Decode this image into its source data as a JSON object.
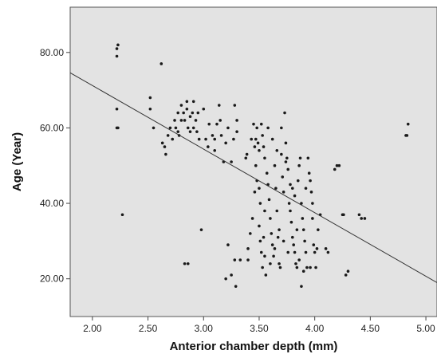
{
  "chart_data": {
    "type": "scatter",
    "title": "",
    "xlabel": "Anterior chamber depth (mm)",
    "ylabel": "Age (Year)",
    "xlim": [
      1.8,
      5.1
    ],
    "ylim": [
      10,
      92
    ],
    "x_ticks": [
      "2.00",
      "2.50",
      "3.00",
      "3.50",
      "4.00",
      "4.50",
      "5.00"
    ],
    "y_ticks": [
      "20.00",
      "40.00",
      "60.00",
      "80.00"
    ],
    "grid": false,
    "background_color": "#e3e3e3",
    "point_color": "#1a1a1a",
    "fit_line": {
      "x": [
        1.8,
        5.1
      ],
      "y": [
        74.6,
        19.0
      ]
    },
    "points": [
      [
        2.22,
        81
      ],
      [
        2.23,
        82
      ],
      [
        2.22,
        79
      ],
      [
        2.22,
        65
      ],
      [
        2.22,
        60
      ],
      [
        2.23,
        60
      ],
      [
        2.27,
        37
      ],
      [
        2.52,
        68
      ],
      [
        2.52,
        65
      ],
      [
        2.55,
        60
      ],
      [
        2.62,
        77
      ],
      [
        2.63,
        56
      ],
      [
        2.65,
        55
      ],
      [
        2.66,
        53
      ],
      [
        2.68,
        58
      ],
      [
        2.7,
        60
      ],
      [
        2.72,
        57
      ],
      [
        2.74,
        62
      ],
      [
        2.75,
        60
      ],
      [
        2.77,
        64
      ],
      [
        2.77,
        59
      ],
      [
        2.78,
        58
      ],
      [
        2.8,
        66
      ],
      [
        2.8,
        62
      ],
      [
        2.82,
        64
      ],
      [
        2.83,
        62
      ],
      [
        2.85,
        67
      ],
      [
        2.85,
        65
      ],
      [
        2.86,
        60
      ],
      [
        2.88,
        63
      ],
      [
        2.88,
        59
      ],
      [
        2.9,
        64
      ],
      [
        2.91,
        67
      ],
      [
        2.91,
        60
      ],
      [
        2.93,
        62
      ],
      [
        2.94,
        59
      ],
      [
        2.95,
        64
      ],
      [
        2.96,
        57
      ],
      [
        2.98,
        33
      ],
      [
        3.0,
        65
      ],
      [
        3.02,
        57
      ],
      [
        3.04,
        55
      ],
      [
        3.05,
        61
      ],
      [
        3.08,
        58
      ],
      [
        3.1,
        57
      ],
      [
        3.1,
        54
      ],
      [
        3.12,
        61
      ],
      [
        3.14,
        66
      ],
      [
        3.15,
        62
      ],
      [
        3.16,
        58
      ],
      [
        3.18,
        51
      ],
      [
        3.2,
        56
      ],
      [
        3.22,
        60
      ],
      [
        3.25,
        51
      ],
      [
        3.27,
        57
      ],
      [
        3.28,
        66
      ],
      [
        3.3,
        62
      ],
      [
        3.3,
        59
      ],
      [
        3.2,
        20
      ],
      [
        3.22,
        29
      ],
      [
        3.25,
        21
      ],
      [
        3.28,
        25
      ],
      [
        3.29,
        18
      ],
      [
        3.33,
        25
      ],
      [
        3.38,
        52
      ],
      [
        3.39,
        53
      ],
      [
        3.4,
        25
      ],
      [
        3.43,
        57
      ],
      [
        3.45,
        61
      ],
      [
        3.46,
        55
      ],
      [
        3.47,
        57
      ],
      [
        3.48,
        60
      ],
      [
        3.49,
        56
      ],
      [
        3.5,
        54
      ],
      [
        3.5,
        44
      ],
      [
        3.51,
        40
      ],
      [
        3.52,
        61
      ],
      [
        3.53,
        58
      ],
      [
        3.54,
        55
      ],
      [
        3.55,
        52
      ],
      [
        3.55,
        38
      ],
      [
        3.44,
        36
      ],
      [
        3.46,
        43
      ],
      [
        3.47,
        50
      ],
      [
        3.48,
        46
      ],
      [
        3.5,
        34
      ],
      [
        3.51,
        30
      ],
      [
        3.52,
        27
      ],
      [
        3.53,
        23
      ],
      [
        3.54,
        31
      ],
      [
        3.55,
        26
      ],
      [
        3.57,
        48
      ],
      [
        3.58,
        45
      ],
      [
        3.59,
        41
      ],
      [
        3.6,
        36
      ],
      [
        3.61,
        32
      ],
      [
        3.62,
        29
      ],
      [
        3.63,
        26
      ],
      [
        3.64,
        50
      ],
      [
        3.65,
        44
      ],
      [
        3.66,
        38
      ],
      [
        3.67,
        31
      ],
      [
        3.68,
        24
      ],
      [
        3.69,
        23
      ],
      [
        3.7,
        53
      ],
      [
        3.71,
        47
      ],
      [
        3.72,
        43
      ],
      [
        3.73,
        64
      ],
      [
        3.74,
        56
      ],
      [
        3.75,
        52
      ],
      [
        3.76,
        49
      ],
      [
        3.77,
        40
      ],
      [
        3.78,
        38
      ],
      [
        3.79,
        35
      ],
      [
        3.8,
        31
      ],
      [
        3.81,
        29
      ],
      [
        3.82,
        27
      ],
      [
        3.83,
        24
      ],
      [
        3.84,
        23
      ],
      [
        3.85,
        46
      ],
      [
        3.86,
        50
      ],
      [
        3.87,
        52
      ],
      [
        3.88,
        40
      ],
      [
        3.89,
        36
      ],
      [
        3.9,
        33
      ],
      [
        3.91,
        30
      ],
      [
        3.92,
        27
      ],
      [
        3.93,
        23
      ],
      [
        3.94,
        52
      ],
      [
        3.95,
        48
      ],
      [
        3.96,
        46
      ],
      [
        3.97,
        43
      ],
      [
        3.98,
        40
      ],
      [
        3.98,
        36
      ],
      [
        3.99,
        29
      ],
      [
        4.0,
        27
      ],
      [
        4.01,
        23
      ],
      [
        3.58,
        60
      ],
      [
        3.62,
        57
      ],
      [
        3.66,
        54
      ],
      [
        3.7,
        60
      ],
      [
        3.74,
        51
      ],
      [
        3.78,
        45
      ],
      [
        3.82,
        42
      ],
      [
        3.88,
        18
      ],
      [
        3.9,
        22
      ],
      [
        3.96,
        23
      ],
      [
        4.05,
        37
      ],
      [
        4.1,
        28
      ],
      [
        4.12,
        27
      ],
      [
        4.18,
        49
      ],
      [
        4.2,
        50
      ],
      [
        4.22,
        50
      ],
      [
        4.25,
        37
      ],
      [
        4.26,
        37
      ],
      [
        4.28,
        21
      ],
      [
        4.3,
        22
      ],
      [
        4.4,
        37
      ],
      [
        4.42,
        36
      ],
      [
        4.45,
        36
      ],
      [
        4.82,
        58
      ],
      [
        4.83,
        58
      ],
      [
        4.84,
        61
      ],
      [
        2.83,
        24
      ],
      [
        2.86,
        24
      ],
      [
        3.4,
        28
      ],
      [
        3.42,
        32
      ],
      [
        3.56,
        21
      ],
      [
        3.6,
        24
      ],
      [
        3.64,
        28
      ],
      [
        3.68,
        33
      ],
      [
        3.72,
        30
      ],
      [
        3.76,
        27
      ],
      [
        3.8,
        44
      ],
      [
        3.84,
        33
      ],
      [
        3.86,
        25
      ],
      [
        3.92,
        44
      ],
      [
        4.02,
        28
      ],
      [
        4.03,
        33
      ]
    ]
  }
}
